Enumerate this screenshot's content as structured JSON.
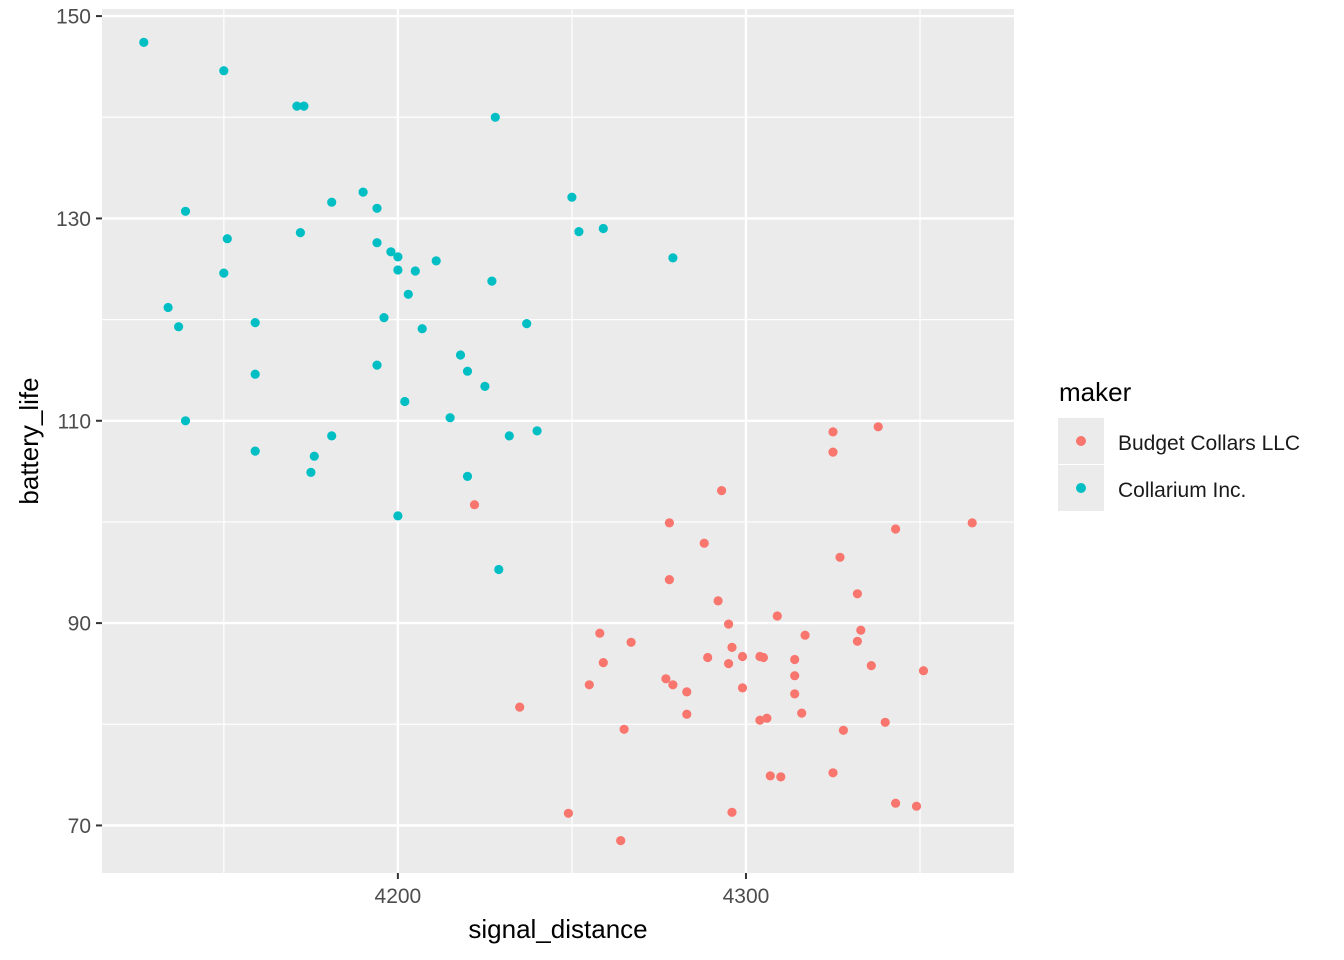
{
  "chart_data": {
    "type": "scatter",
    "title": "",
    "xlabel": "signal_distance",
    "ylabel": "battery_life",
    "xlim": [
      4115,
      4377
    ],
    "ylim": [
      65.3,
      150.7
    ],
    "x_ticks": [
      4200,
      4300
    ],
    "x_tick_labels": [
      "4200",
      "4300"
    ],
    "y_ticks": [
      70,
      90,
      110,
      130,
      150
    ],
    "y_tick_labels": [
      "70",
      "90",
      "110",
      "130",
      "150"
    ],
    "grid": true,
    "legend": {
      "title": "maker",
      "position": "right"
    },
    "series": [
      {
        "name": "Budget Collars LLC",
        "color": "#F8766D",
        "points": [
          [
            4222,
            101.7
          ],
          [
            4278,
            99.9
          ],
          [
            4293,
            103.1
          ],
          [
            4288,
            97.9
          ],
          [
            4325,
            108.9
          ],
          [
            4325,
            106.9
          ],
          [
            4338,
            109.4
          ],
          [
            4343,
            99.3
          ],
          [
            4365,
            99.9
          ],
          [
            4278,
            94.3
          ],
          [
            4292,
            92.2
          ],
          [
            4327,
            96.5
          ],
          [
            4295,
            89.9
          ],
          [
            4309,
            90.7
          ],
          [
            4332,
            92.9
          ],
          [
            4333,
            89.3
          ],
          [
            4332,
            88.2
          ],
          [
            4258,
            89.0
          ],
          [
            4267,
            88.1
          ],
          [
            4259,
            86.1
          ],
          [
            4289,
            86.6
          ],
          [
            4296,
            87.6
          ],
          [
            4295,
            86.0
          ],
          [
            4299,
            86.7
          ],
          [
            4304,
            86.7
          ],
          [
            4305,
            86.6
          ],
          [
            4314,
            86.4
          ],
          [
            4317,
            88.8
          ],
          [
            4336,
            85.8
          ],
          [
            4351,
            85.3
          ],
          [
            4255,
            83.9
          ],
          [
            4277,
            84.5
          ],
          [
            4279,
            83.9
          ],
          [
            4283,
            83.2
          ],
          [
            4299,
            83.6
          ],
          [
            4314,
            84.8
          ],
          [
            4314,
            83.0
          ],
          [
            4235,
            81.7
          ],
          [
            4283,
            81.0
          ],
          [
            4265,
            79.5
          ],
          [
            4304,
            80.4
          ],
          [
            4306,
            80.6
          ],
          [
            4316,
            81.1
          ],
          [
            4328,
            79.4
          ],
          [
            4340,
            80.2
          ],
          [
            4307,
            74.9
          ],
          [
            4310,
            74.8
          ],
          [
            4325,
            75.2
          ],
          [
            4343,
            72.2
          ],
          [
            4349,
            71.9
          ],
          [
            4249,
            71.2
          ],
          [
            4296,
            71.3
          ],
          [
            4264,
            68.5
          ]
        ]
      },
      {
        "name": "Collarium Inc.",
        "color": "#00BFC4",
        "points": [
          [
            4127,
            147.4
          ],
          [
            4150,
            144.6
          ],
          [
            4171,
            141.1
          ],
          [
            4173,
            141.1
          ],
          [
            4228,
            140.0
          ],
          [
            4139,
            130.7
          ],
          [
            4151,
            128.0
          ],
          [
            4172,
            128.6
          ],
          [
            4181,
            131.6
          ],
          [
            4190,
            132.6
          ],
          [
            4194,
            131.0
          ],
          [
            4194,
            127.6
          ],
          [
            4198,
            126.7
          ],
          [
            4200,
            126.2
          ],
          [
            4200,
            124.9
          ],
          [
            4205,
            124.8
          ],
          [
            4211,
            125.8
          ],
          [
            4227,
            123.8
          ],
          [
            4250,
            132.1
          ],
          [
            4252,
            128.7
          ],
          [
            4259,
            129.0
          ],
          [
            4279,
            126.1
          ],
          [
            4150,
            124.6
          ],
          [
            4134,
            121.2
          ],
          [
            4137,
            119.3
          ],
          [
            4159,
            119.7
          ],
          [
            4196,
            120.2
          ],
          [
            4203,
            122.5
          ],
          [
            4207,
            119.1
          ],
          [
            4237,
            119.6
          ],
          [
            4159,
            114.6
          ],
          [
            4194,
            115.5
          ],
          [
            4218,
            116.5
          ],
          [
            4220,
            114.9
          ],
          [
            4225,
            113.4
          ],
          [
            4202,
            111.9
          ],
          [
            4215,
            110.3
          ],
          [
            4139,
            110.0
          ],
          [
            4159,
            107.0
          ],
          [
            4176,
            106.5
          ],
          [
            4175,
            104.9
          ],
          [
            4181,
            108.5
          ],
          [
            4232,
            108.5
          ],
          [
            4240,
            109.0
          ],
          [
            4220,
            104.5
          ],
          [
            4200,
            100.6
          ],
          [
            4229,
            95.3
          ]
        ]
      }
    ]
  }
}
